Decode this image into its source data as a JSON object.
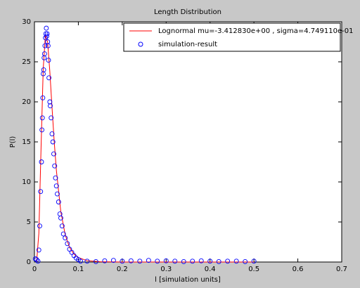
{
  "chart_data": {
    "type": "line",
    "title": "Length Distribution",
    "xlabel": "l [simulation units]",
    "ylabel": "P(l)",
    "xlim": [
      0,
      0.7
    ],
    "xticks": [
      0,
      0.1,
      0.2,
      0.3,
      0.4,
      0.5,
      0.6,
      0.7
    ],
    "ylim": [
      0,
      30
    ],
    "yticks": [
      0,
      5,
      10,
      15,
      20,
      25,
      30
    ],
    "legend": "upper right",
    "series": [
      {
        "name": "Lognormal mu=-3.412830e+00 , sigma=4.749110e-01",
        "color": "#ff0000",
        "mode": "line",
        "x": [
          0.005,
          0.01,
          0.015,
          0.02,
          0.025,
          0.03,
          0.035,
          0.04,
          0.045,
          0.05,
          0.06,
          0.07,
          0.08,
          0.09,
          0.1,
          0.12,
          0.15,
          0.2,
          0.3,
          0.4,
          0.5
        ],
        "values": [
          0.06,
          3.59,
          14.19,
          24.17,
          28.38,
          27.46,
          23.81,
          19.32,
          15.05,
          11.42,
          6.31,
          3.41,
          1.83,
          1.0,
          0.55,
          0.17,
          0.03,
          0.003,
          0,
          0,
          0
        ]
      },
      {
        "name": "simulation-result",
        "color": "#0000ff",
        "mode": "markers",
        "x": [
          0.002,
          0.005,
          0.008,
          0.01,
          0.012,
          0.014,
          0.016,
          0.017,
          0.018,
          0.019,
          0.02,
          0.021,
          0.022,
          0.023,
          0.024,
          0.025,
          0.026,
          0.027,
          0.028,
          0.029,
          0.03,
          0.031,
          0.032,
          0.033,
          0.035,
          0.036,
          0.038,
          0.04,
          0.042,
          0.044,
          0.046,
          0.048,
          0.05,
          0.052,
          0.055,
          0.058,
          0.06,
          0.063,
          0.066,
          0.07,
          0.075,
          0.08,
          0.085,
          0.09,
          0.095,
          0.1,
          0.105,
          0.12,
          0.14,
          0.16,
          0.18,
          0.2,
          0.22,
          0.24,
          0.26,
          0.28,
          0.3,
          0.32,
          0.34,
          0.36,
          0.38,
          0.4,
          0.42,
          0.44,
          0.46,
          0.48,
          0.5
        ],
        "values": [
          0.4,
          0.3,
          0.1,
          1.5,
          4.5,
          8.8,
          12.5,
          16.5,
          18,
          20.5,
          23.5,
          24,
          25.5,
          26,
          27,
          28,
          28.5,
          29.2,
          28.2,
          28.5,
          27.5,
          27,
          25.2,
          23,
          20,
          19.5,
          18,
          16,
          15,
          13.5,
          12,
          10.5,
          9.5,
          8.5,
          7.5,
          6,
          5.5,
          4.5,
          3.5,
          3,
          2.3,
          1.6,
          1.2,
          0.8,
          0.5,
          0.3,
          0.1,
          0.1,
          0.05,
          0.15,
          0.2,
          0.1,
          0.15,
          0.1,
          0.2,
          0.1,
          0.15,
          0.1,
          0.05,
          0.1,
          0.15,
          0.1,
          0.05,
          0.1,
          0.1,
          0.05,
          0.1
        ]
      }
    ]
  }
}
